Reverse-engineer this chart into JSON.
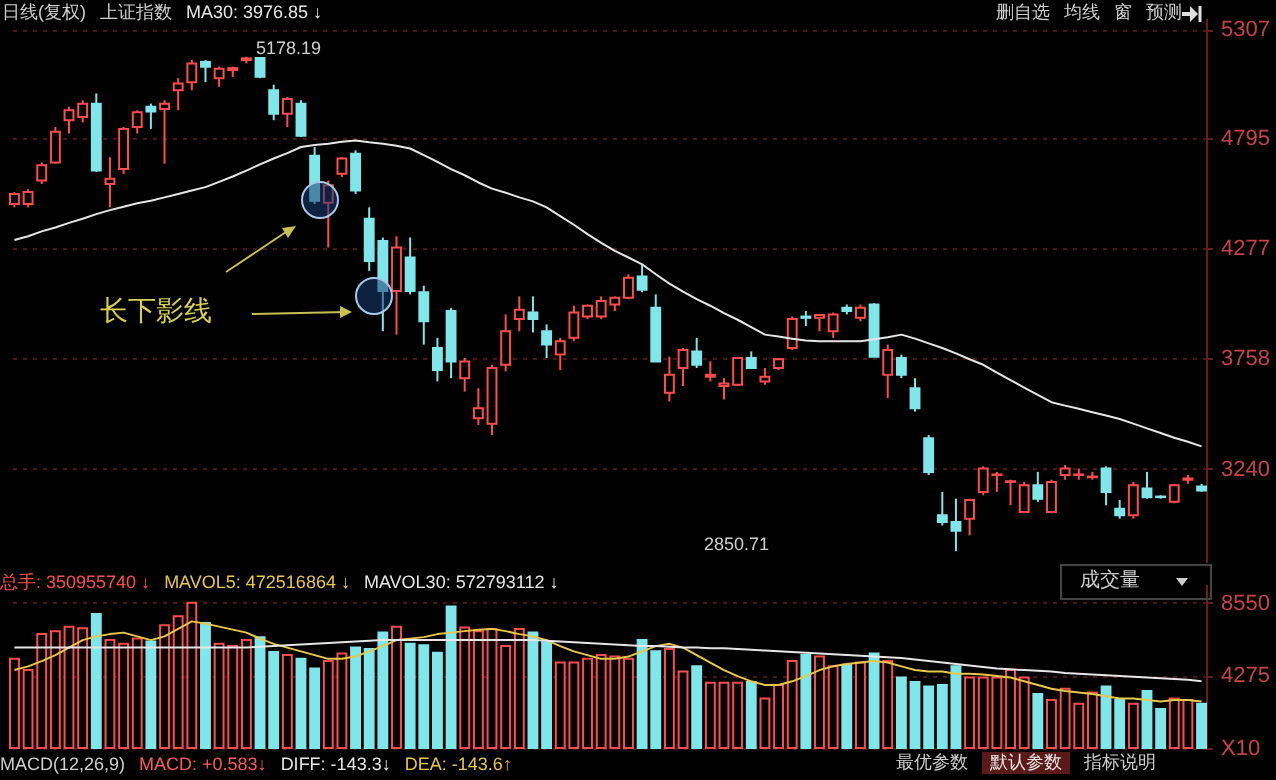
{
  "chart_data": [
    {
      "type": "candlestick",
      "annotations": [
        "日线(复权)",
        "上证指数",
        "删自选",
        "均线",
        "窗",
        "预测",
        "长下影线",
        "5178.19",
        "2850.71"
      ],
      "categories": [
        null,
        null,
        null,
        null,
        null,
        null,
        null,
        null,
        null,
        null,
        null,
        null,
        null,
        null,
        null,
        null,
        null,
        null,
        null,
        null,
        null,
        null,
        null,
        null,
        null,
        null,
        null,
        null,
        null,
        null,
        null,
        null,
        null,
        null,
        null,
        null,
        null,
        null,
        null,
        null,
        null,
        null,
        null,
        null,
        null,
        null,
        null,
        null,
        null,
        null,
        null,
        null,
        null,
        null,
        null,
        null,
        null,
        null,
        null,
        null,
        null,
        null,
        null,
        null,
        null,
        null,
        null,
        null,
        null,
        null,
        null,
        null,
        null,
        null,
        null,
        null,
        null,
        null,
        null,
        null,
        null,
        null,
        null,
        null,
        null,
        null,
        null,
        null
      ],
      "ohlc": [
        [
          4485,
          4541,
          4469,
          4532
        ],
        [
          4485,
          4554,
          4469,
          4541
        ],
        [
          4595,
          4680,
          4579,
          4667
        ],
        [
          4680,
          4847,
          4674,
          4825
        ],
        [
          4879,
          4942,
          4816,
          4926
        ],
        [
          4894,
          4973,
          4869,
          4957
        ],
        [
          4957,
          5005,
          4636,
          4642
        ],
        [
          4579,
          4705,
          4469,
          4604
        ],
        [
          4649,
          4847,
          4627,
          4838
        ],
        [
          4847,
          4926,
          4816,
          4916
        ],
        [
          4942,
          4957,
          4838,
          4920
        ],
        [
          4932,
          4973,
          4674,
          4957
        ],
        [
          5020,
          5077,
          4926,
          5052
        ],
        [
          5058,
          5162,
          5020,
          5146
        ],
        [
          5153,
          5162,
          5058,
          5131
        ],
        [
          5077,
          5131,
          5036,
          5121
        ],
        [
          5115,
          5131,
          5083,
          5124
        ],
        [
          5162,
          5178.19,
          5146,
          5170
        ],
        [
          5172,
          5176,
          5077,
          5083
        ],
        [
          5020,
          5046,
          4879,
          4910
        ],
        [
          4910,
          4989,
          4847,
          4979
        ],
        [
          4957,
          4973,
          4800,
          4806
        ],
        [
          4712,
          4753,
          4485,
          4500
        ],
        [
          4491,
          4595,
          4280,
          4573
        ],
        [
          4627,
          4705,
          4611,
          4699
        ],
        [
          4721,
          4737,
          4532,
          4548
        ],
        [
          4415,
          4469,
          4170,
          4217
        ],
        [
          4311,
          4327,
          3886,
          4075
        ],
        [
          4075,
          4333,
          3870,
          4280
        ],
        [
          4233,
          4327,
          4059,
          4075
        ],
        [
          4069,
          4100,
          3823,
          3933
        ],
        [
          3807,
          3855,
          3650,
          3703
        ],
        [
          3981,
          3996,
          3665,
          3744
        ],
        [
          3665,
          3760,
          3602,
          3744
        ],
        [
          3476,
          3618,
          3445,
          3524
        ],
        [
          3451,
          3728,
          3398,
          3713
        ],
        [
          3728,
          3965,
          3697,
          3886
        ],
        [
          3943,
          4050,
          3886,
          3987
        ],
        [
          3974,
          4050,
          3880,
          3943
        ],
        [
          3886,
          3918,
          3760,
          3823
        ],
        [
          3776,
          3855,
          3703,
          3839
        ],
        [
          3855,
          4006,
          3839,
          3974
        ],
        [
          3955,
          4012,
          3943,
          4006
        ],
        [
          3955,
          4050,
          3943,
          4028
        ],
        [
          4012,
          4050,
          3981,
          4044
        ],
        [
          4044,
          4154,
          4037,
          4138
        ],
        [
          4144,
          4201,
          4069,
          4081
        ],
        [
          3996,
          4059,
          3744,
          3744
        ],
        [
          3596,
          3766,
          3555,
          3681
        ],
        [
          3713,
          3807,
          3628,
          3798
        ],
        [
          3791,
          3855,
          3713,
          3728
        ],
        [
          3672,
          3744,
          3650,
          3681
        ],
        [
          3628,
          3665,
          3565,
          3640
        ],
        [
          3634,
          3766,
          3628,
          3760
        ],
        [
          3760,
          3791,
          3713,
          3713
        ],
        [
          3650,
          3713,
          3634,
          3672
        ],
        [
          3713,
          3760,
          3703,
          3754
        ],
        [
          3807,
          3955,
          3798,
          3943
        ],
        [
          3955,
          3981,
          3911,
          3949
        ],
        [
          3949,
          3965,
          3886,
          3962
        ],
        [
          3886,
          3974,
          3855,
          3965
        ],
        [
          3996,
          4012,
          3965,
          3981
        ],
        [
          3949,
          4012,
          3933,
          3996
        ],
        [
          4012,
          4018,
          3766,
          3766
        ],
        [
          3681,
          3823,
          3571,
          3798
        ],
        [
          3760,
          3776,
          3665,
          3681
        ],
        [
          3618,
          3665,
          3508,
          3524
        ],
        [
          3382,
          3398,
          3209,
          3224
        ],
        [
          3020,
          3130,
          2972,
          2988
        ],
        [
          2988,
          3098,
          2850.71,
          2947
        ],
        [
          3004,
          3098,
          2925,
          3092
        ],
        [
          3130,
          3250,
          3114,
          3240
        ],
        [
          3209,
          3224,
          3130,
          3212
        ],
        [
          3177,
          3187,
          3067,
          3180
        ],
        [
          3035,
          3177,
          3029,
          3161
        ],
        [
          3161,
          3224,
          3083,
          3098
        ],
        [
          3035,
          3187,
          3029,
          3177
        ],
        [
          3209,
          3256,
          3187,
          3240
        ],
        [
          3209,
          3240,
          3187,
          3212
        ],
        [
          3199,
          3224,
          3187,
          3202
        ],
        [
          3240,
          3250,
          3067,
          3130
        ],
        [
          3051,
          3092,
          3004,
          3020
        ],
        [
          3020,
          3177,
          3004,
          3161
        ],
        [
          3146,
          3224,
          3098,
          3105
        ],
        [
          3108,
          3114,
          3098,
          3105
        ],
        [
          3083,
          3168,
          3076,
          3161
        ],
        [
          3187,
          3209,
          3168,
          3193
        ],
        [
          3155,
          3168,
          3130,
          3136
        ]
      ],
      "colors": [
        "#ff4d4d",
        "#ff4d4d",
        "#ff4d4d",
        "#ff4d4d",
        "#ff4d4d",
        "#ff4d4d",
        "#7fe6ea",
        "#ff4d4d",
        "#ff4d4d",
        "#ff4d4d",
        "#7fe6ea",
        "#ff4d4d",
        "#ff4d4d",
        "#ff4d4d",
        "#7fe6ea",
        "#ff4d4d",
        "#ff4d4d",
        "#ff4d4d",
        "#7fe6ea",
        "#7fe6ea",
        "#ff4d4d",
        "#7fe6ea",
        "#7fe6ea",
        "#ff4d4d",
        "#ff4d4d",
        "#7fe6ea",
        "#7fe6ea",
        "#7fe6ea",
        "#ff4d4d",
        "#7fe6ea",
        "#7fe6ea",
        "#7fe6ea",
        "#7fe6ea",
        "#ff4d4d",
        "#ff4d4d",
        "#ff4d4d",
        "#ff4d4d",
        "#ff4d4d",
        "#7fe6ea",
        "#7fe6ea",
        "#ff4d4d",
        "#ff4d4d",
        "#ff4d4d",
        "#ff4d4d",
        "#ff4d4d",
        "#ff4d4d",
        "#7fe6ea",
        "#7fe6ea",
        "#ff4d4d",
        "#ff4d4d",
        "#7fe6ea",
        "#ff4d4d",
        "#ff4d4d",
        "#ff4d4d",
        "#7fe6ea",
        "#ff4d4d",
        "#ff4d4d",
        "#ff4d4d",
        "#7fe6ea",
        "#ff4d4d",
        "#ff4d4d",
        "#7fe6ea",
        "#ff4d4d",
        "#7fe6ea",
        "#ff4d4d",
        "#7fe6ea",
        "#7fe6ea",
        "#7fe6ea",
        "#7fe6ea",
        "#7fe6ea",
        "#ff4d4d",
        "#ff4d4d",
        "#ff4d4d",
        "#ff4d4d",
        "#ff4d4d",
        "#7fe6ea",
        "#ff4d4d",
        "#ff4d4d",
        "#ff4d4d",
        "#ff4d4d",
        "#7fe6ea",
        "#7fe6ea",
        "#ff4d4d",
        "#7fe6ea",
        "#7fe6ea",
        "#ff4d4d",
        "#ff4d4d",
        "#7fe6ea"
      ],
      "ylim": [
        2800,
        5360
      ],
      "yticks": [
        5307,
        4795,
        4277,
        3758,
        3240
      ],
      "grid": "y",
      "series": [
        {
          "name": "MA30: 3976.85 ↓",
          "type": "line",
          "color": "#e6e6e6",
          "values": [
            4315,
            4333,
            4356,
            4374,
            4396,
            4415,
            4437,
            4456,
            4472,
            4488,
            4500,
            4516,
            4532,
            4548,
            4564,
            4589,
            4614,
            4642,
            4671,
            4699,
            4724,
            4753,
            4762,
            4768,
            4778,
            4784,
            4775,
            4768,
            4759,
            4746,
            4715,
            4683,
            4649,
            4620,
            4586,
            4557,
            4538,
            4516,
            4497,
            4469,
            4428,
            4387,
            4343,
            4302,
            4264,
            4233,
            4201,
            4154,
            4110,
            4072,
            4037,
            4006,
            3971,
            3940,
            3905,
            3870,
            3861,
            3851,
            3842,
            3839,
            3839,
            3839,
            3839,
            3848,
            3858,
            3870,
            3851,
            3829,
            3807,
            3782,
            3754,
            3728,
            3691,
            3656,
            3621,
            3587,
            3552,
            3536,
            3521,
            3505,
            3489,
            3473,
            3451,
            3429,
            3407,
            3385,
            3366,
            3344
          ]
        }
      ]
    },
    {
      "type": "bar",
      "annotations": [
        "成交量",
        "MACD(12,26,9)",
        "MACD: +0.583↓",
        "DIFF: -143.3↓",
        "DEA: -143.6↑",
        "最优参数",
        "默认参数",
        "指标说明"
      ],
      "categories": [
        null,
        null,
        null,
        null,
        null,
        null,
        null,
        null,
        null,
        null,
        null,
        null,
        null,
        null,
        null,
        null,
        null,
        null,
        null,
        null,
        null,
        null,
        null,
        null,
        null,
        null,
        null,
        null,
        null,
        null,
        null,
        null,
        null,
        null,
        null,
        null,
        null,
        null,
        null,
        null,
        null,
        null,
        null,
        null,
        null,
        null,
        null,
        null,
        null,
        null,
        null,
        null,
        null,
        null,
        null,
        null,
        null,
        null,
        null,
        null,
        null,
        null,
        null,
        null,
        null,
        null,
        null,
        null,
        null,
        null,
        null,
        null,
        null,
        null,
        null,
        null,
        null,
        null,
        null,
        null,
        null,
        null,
        null,
        null,
        null,
        null,
        null,
        null
      ],
      "ylim": [
        0,
        9650
      ],
      "yticks": [
        8550,
        4275,
        {
          "value": 0,
          "label": "X10"
        }
      ],
      "grid": "y",
      "series": [
        {
          "name": "总手: 350955740 ↓",
          "type": "bar",
          "color": "#ff4d4d",
          "colors": [
            "#ff4d4d",
            "#ff4d4d",
            "#ff4d4d",
            "#ff4d4d",
            "#ff4d4d",
            "#ff4d4d",
            "#7fe6ea",
            "#ff4d4d",
            "#ff4d4d",
            "#ff4d4d",
            "#7fe6ea",
            "#ff4d4d",
            "#ff4d4d",
            "#ff4d4d",
            "#7fe6ea",
            "#ff4d4d",
            "#ff4d4d",
            "#ff4d4d",
            "#7fe6ea",
            "#7fe6ea",
            "#ff4d4d",
            "#7fe6ea",
            "#7fe6ea",
            "#ff4d4d",
            "#ff4d4d",
            "#7fe6ea",
            "#7fe6ea",
            "#7fe6ea",
            "#ff4d4d",
            "#7fe6ea",
            "#7fe6ea",
            "#7fe6ea",
            "#7fe6ea",
            "#ff4d4d",
            "#ff4d4d",
            "#ff4d4d",
            "#ff4d4d",
            "#ff4d4d",
            "#7fe6ea",
            "#7fe6ea",
            "#ff4d4d",
            "#ff4d4d",
            "#ff4d4d",
            "#ff4d4d",
            "#ff4d4d",
            "#ff4d4d",
            "#7fe6ea",
            "#7fe6ea",
            "#ff4d4d",
            "#ff4d4d",
            "#7fe6ea",
            "#ff4d4d",
            "#ff4d4d",
            "#ff4d4d",
            "#7fe6ea",
            "#ff4d4d",
            "#ff4d4d",
            "#ff4d4d",
            "#7fe6ea",
            "#ff4d4d",
            "#ff4d4d",
            "#7fe6ea",
            "#ff4d4d",
            "#7fe6ea",
            "#ff4d4d",
            "#7fe6ea",
            "#7fe6ea",
            "#7fe6ea",
            "#7fe6ea",
            "#7fe6ea",
            "#ff4d4d",
            "#ff4d4d",
            "#ff4d4d",
            "#ff4d4d",
            "#ff4d4d",
            "#7fe6ea",
            "#ff4d4d",
            "#ff4d4d",
            "#ff4d4d",
            "#ff4d4d",
            "#7fe6ea",
            "#7fe6ea",
            "#ff4d4d",
            "#7fe6ea",
            "#7fe6ea",
            "#ff4d4d",
            "#ff4d4d",
            "#7fe6ea"
          ],
          "values": [
            5246,
            4585,
            6701,
            6877,
            7141,
            7053,
            7891,
            6348,
            6128,
            6436,
            6260,
            7230,
            7759,
            8552,
            7362,
            6128,
            5995,
            6348,
            6524,
            5643,
            5466,
            5246,
            4673,
            5114,
            5555,
            5907,
            5819,
            6789,
            7141,
            6128,
            6039,
            5599,
            8332,
            7097,
            6877,
            7009,
            5995,
            7009,
            6789,
            6216,
            5026,
            5026,
            5246,
            5466,
            5378,
            5246,
            6348,
            5687,
            5819,
            4496,
            4805,
            3835,
            3835,
            3835,
            3879,
            2910,
            3703,
            5114,
            5466,
            5378,
            4805,
            4893,
            5026,
            5555,
            5114,
            4144,
            3879,
            3615,
            3703,
            4805,
            4144,
            4144,
            4144,
            4585,
            4144,
            3174,
            2822,
            3483,
            2601,
            3262,
            3615,
            2822,
            2601,
            3351,
            2293,
            2910,
            2822,
            2601
          ]
        },
        {
          "name": "MAVOL5: 472516864 ↓",
          "type": "line",
          "color": "#e8c84a",
          "values": [
            4585,
            4805,
            5114,
            5466,
            5907,
            6348,
            6568,
            6701,
            6789,
            6568,
            6348,
            6568,
            7009,
            7450,
            7318,
            7141,
            6965,
            6789,
            6436,
            6128,
            5907,
            5687,
            5466,
            5246,
            5246,
            5378,
            5687,
            5995,
            6348,
            6436,
            6524,
            6701,
            6789,
            6877,
            6965,
            7009,
            6877,
            6701,
            6568,
            6348,
            5995,
            5687,
            5466,
            5246,
            5246,
            5378,
            5687,
            5995,
            6128,
            5907,
            5466,
            5026,
            4585,
            4232,
            3924,
            3703,
            3703,
            3924,
            4232,
            4585,
            4805,
            4938,
            5026,
            5114,
            5026,
            4805,
            4585,
            4496,
            4496,
            4364,
            4364,
            4320,
            4232,
            4144,
            3924,
            3703,
            3483,
            3351,
            3262,
            3174,
            3042,
            2910,
            2910,
            2822,
            2733,
            2822,
            2822,
            2733
          ]
        },
        {
          "name": "MAVOL30: 572793112 ↓",
          "type": "line",
          "color": "#e6e6e6",
          "values": [
            5907,
            5907,
            5907,
            5907,
            5907,
            5907,
            5907,
            5907,
            5907,
            5907,
            5907,
            5907,
            5907,
            5907,
            5907,
            5907,
            5907,
            5907,
            5951,
            5995,
            6039,
            6084,
            6128,
            6172,
            6216,
            6260,
            6304,
            6348,
            6348,
            6348,
            6348,
            6348,
            6348,
            6348,
            6348,
            6348,
            6348,
            6348,
            6348,
            6304,
            6260,
            6216,
            6172,
            6128,
            6084,
            6039,
            5995,
            5995,
            5951,
            5907,
            5907,
            5863,
            5863,
            5819,
            5775,
            5731,
            5687,
            5643,
            5599,
            5555,
            5511,
            5466,
            5422,
            5378,
            5334,
            5290,
            5202,
            5114,
            5026,
            4938,
            4849,
            4761,
            4673,
            4629,
            4585,
            4541,
            4496,
            4408,
            4364,
            4320,
            4276,
            4232,
            4188,
            4144,
            4100,
            4056,
            4012,
            3924
          ]
        }
      ]
    }
  ]
}
